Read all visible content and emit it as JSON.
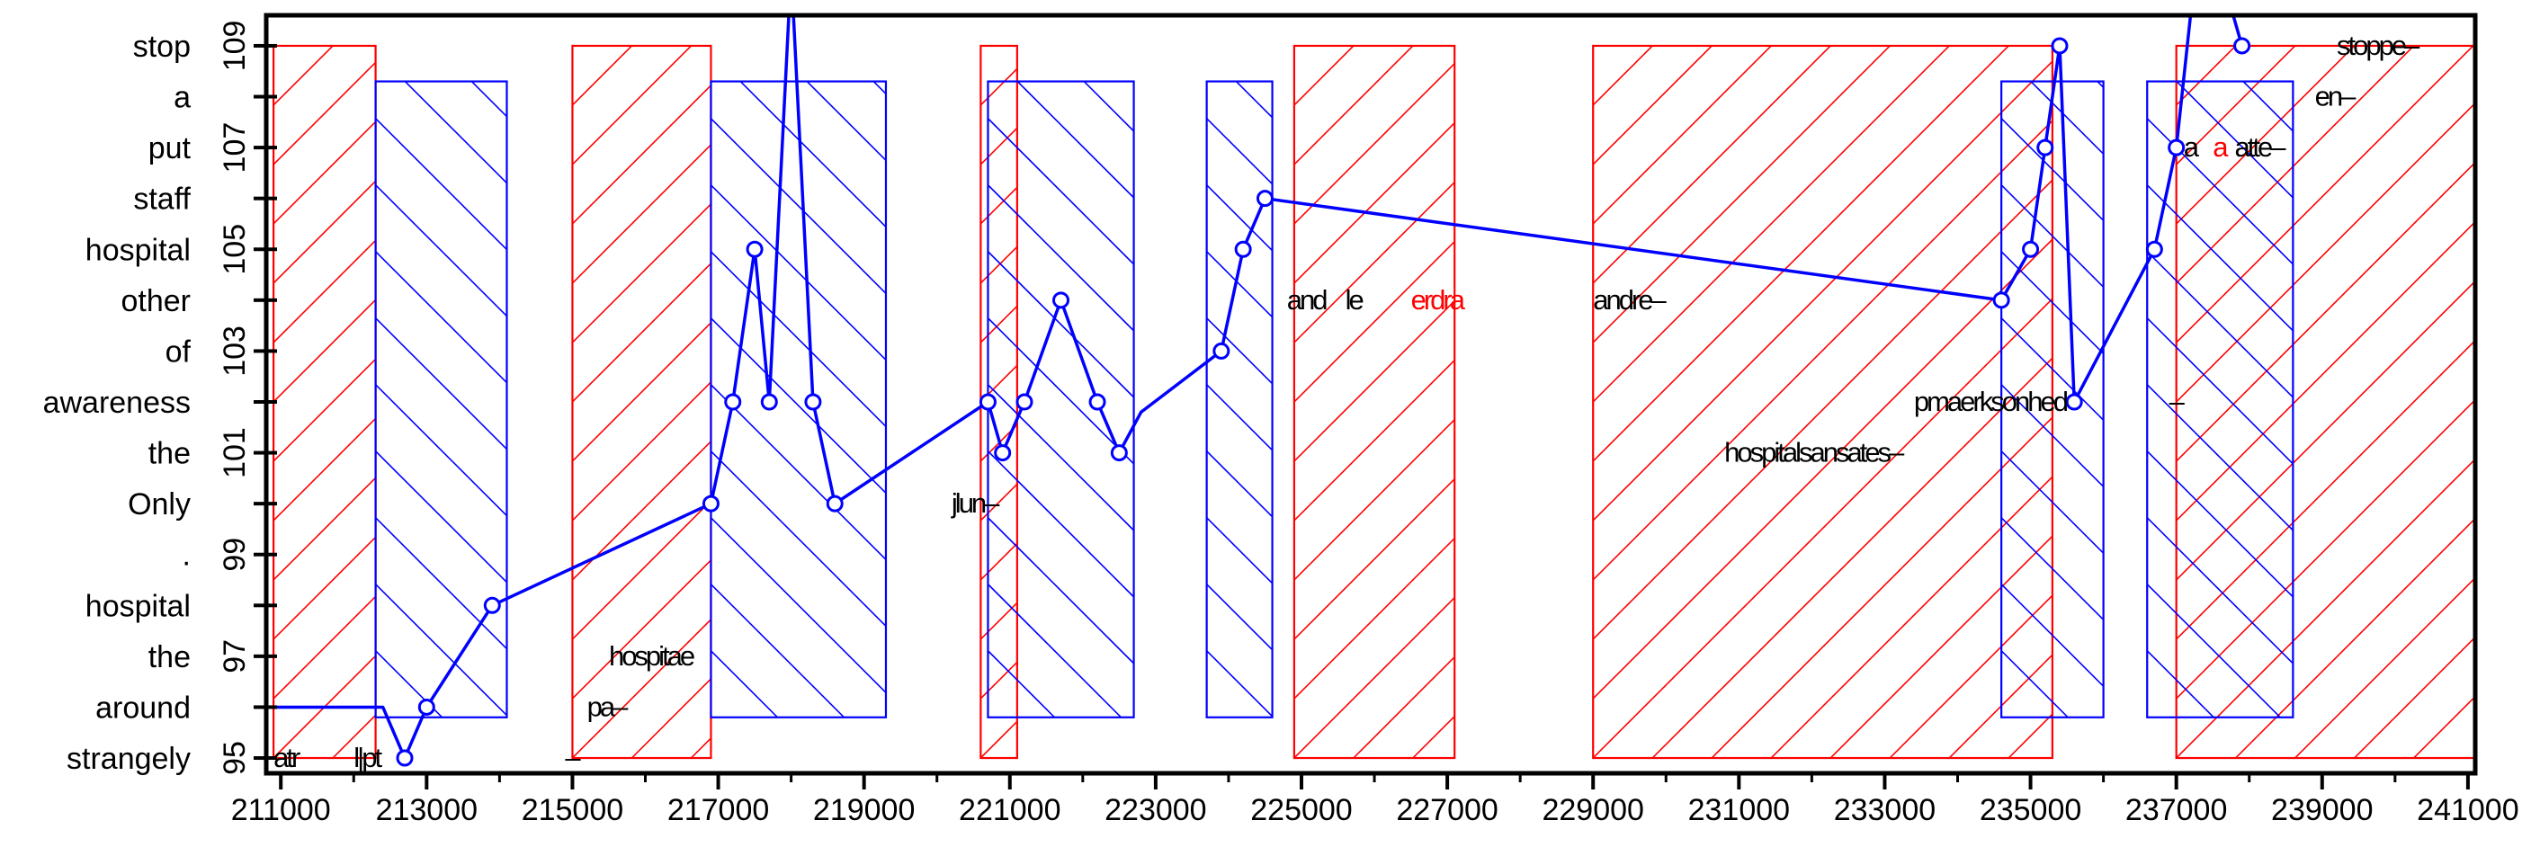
{
  "chart_data": {
    "type": "line",
    "title": "",
    "xlabel": "",
    "ylabel": "",
    "xlim": [
      210800,
      241100
    ],
    "ylim": [
      94.7,
      109.6
    ],
    "grid": false,
    "legend": "none",
    "x_ticks": [
      "211000",
      "213000",
      "215000",
      "217000",
      "219000",
      "221000",
      "223000",
      "225000",
      "227000",
      "229000",
      "231000",
      "233000",
      "235000",
      "237000",
      "239000",
      "241000"
    ],
    "y_ticks": [
      "95",
      "97",
      "99",
      "101",
      "103",
      "105",
      "107",
      "109"
    ],
    "y_words": [
      {
        "y": 95,
        "label": "strangely"
      },
      {
        "y": 96,
        "label": "around"
      },
      {
        "y": 97,
        "label": "the"
      },
      {
        "y": 98,
        "label": "hospital"
      },
      {
        "y": 99,
        "label": "."
      },
      {
        "y": 100,
        "label": "Only"
      },
      {
        "y": 101,
        "label": "the"
      },
      {
        "y": 102,
        "label": "awareness"
      },
      {
        "y": 103,
        "label": "of"
      },
      {
        "y": 104,
        "label": "other"
      },
      {
        "y": 105,
        "label": "hospital"
      },
      {
        "y": 106,
        "label": "staff"
      },
      {
        "y": 107,
        "label": "put"
      },
      {
        "y": 108,
        "label": "a"
      },
      {
        "y": 109,
        "label": "stop"
      }
    ],
    "red_regions": [
      {
        "x0": 210900,
        "x1": 212300,
        "y0": 95,
        "y1": 109
      },
      {
        "x0": 215000,
        "x1": 216900,
        "y0": 95,
        "y1": 109
      },
      {
        "x0": 220600,
        "x1": 221100,
        "y0": 95,
        "y1": 109
      },
      {
        "x0": 224900,
        "x1": 227100,
        "y0": 95,
        "y1": 109
      },
      {
        "x0": 229000,
        "x1": 235300,
        "y0": 95,
        "y1": 109
      },
      {
        "x0": 237000,
        "x1": 241100,
        "y0": 95,
        "y1": 109
      }
    ],
    "blue_regions": [
      {
        "x0": 212300,
        "x1": 214100,
        "y0": 95.8,
        "y1": 108.3
      },
      {
        "x0": 216900,
        "x1": 219300,
        "y0": 95.8,
        "y1": 108.3
      },
      {
        "x0": 220700,
        "x1": 222700,
        "y0": 95.8,
        "y1": 108.3
      },
      {
        "x0": 223700,
        "x1": 224600,
        "y0": 95.8,
        "y1": 108.3
      },
      {
        "x0": 234600,
        "x1": 236000,
        "y0": 95.8,
        "y1": 108.3
      },
      {
        "x0": 236600,
        "x1": 238600,
        "y0": 95.8,
        "y1": 108.3
      }
    ],
    "series": [
      {
        "x": [
          210900,
          212400,
          212700,
          213000,
          213900,
          216900,
          217200,
          217500,
          217700,
          218000,
          218300,
          218600,
          220700,
          220900,
          221200,
          221700,
          222200,
          222500,
          222800,
          223900,
          224200,
          224500,
          234600,
          235000,
          235200,
          235400,
          235600,
          236700,
          237000,
          237300,
          237700,
          237900
        ],
        "y": [
          96,
          96,
          95,
          96,
          98,
          100,
          102,
          105,
          102,
          110.5,
          102,
          100,
          102,
          101,
          102,
          104,
          102,
          101,
          101.8,
          103,
          105,
          106,
          104,
          105,
          107,
          109,
          102,
          105,
          107,
          111,
          110,
          109
        ],
        "markers": [
          0,
          0,
          1,
          1,
          1,
          1,
          1,
          1,
          1,
          0,
          1,
          1,
          1,
          1,
          1,
          1,
          1,
          1,
          0,
          1,
          1,
          1,
          1,
          1,
          1,
          1,
          1,
          1,
          1,
          0,
          0,
          1
        ]
      }
    ],
    "annotations": [
      {
        "text": "atr",
        "x": 210900,
        "y": 95,
        "color": "#000000"
      },
      {
        "text": "l|pt",
        "x": 212000,
        "y": 95,
        "color": "#000000"
      },
      {
        "text": "–",
        "x": 214900,
        "y": 95,
        "color": "#000000"
      },
      {
        "text": "pa–",
        "x": 215200,
        "y": 96,
        "color": "#000000"
      },
      {
        "text": "hospitae",
        "x": 215500,
        "y": 97,
        "color": "#000000"
      },
      {
        "text": "jlun–",
        "x": 220200,
        "y": 100,
        "color": "#000000"
      },
      {
        "text": "and",
        "x": 224800,
        "y": 104,
        "color": "#000000"
      },
      {
        "text": "le",
        "x": 225600,
        "y": 104,
        "color": "#000000"
      },
      {
        "text": "erdra",
        "x": 226500,
        "y": 104,
        "color": "#ff0000"
      },
      {
        "text": "andre–",
        "x": 229000,
        "y": 104,
        "color": "#000000"
      },
      {
        "text": "hospitalsansates–",
        "x": 230800,
        "y": 101,
        "color": "#000000"
      },
      {
        "text": "pmaerksonhed",
        "x": 233400,
        "y": 102,
        "color": "#000000"
      },
      {
        "text": "–",
        "x": 236900,
        "y": 102,
        "color": "#000000"
      },
      {
        "text": "a",
        "x": 237100,
        "y": 107,
        "color": "#000000"
      },
      {
        "text": "a",
        "x": 237500,
        "y": 107,
        "color": "#ff0000"
      },
      {
        "text": "atte–",
        "x": 237800,
        "y": 107,
        "color": "#000000"
      },
      {
        "text": "en–",
        "x": 238900,
        "y": 108,
        "color": "#000000"
      },
      {
        "text": "stoppe–",
        "x": 239200,
        "y": 109,
        "color": "#000000"
      }
    ],
    "colors": {
      "axis": "#000000",
      "line": "#0000ff",
      "red_hatch": "#ff0000",
      "blue_hatch": "#0000ff",
      "highlight": "#ff0000"
    }
  }
}
